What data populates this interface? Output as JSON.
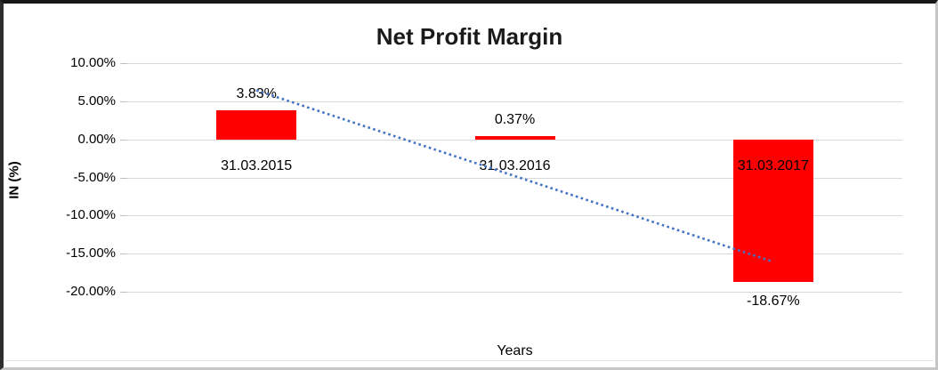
{
  "chart_data": {
    "type": "bar",
    "title": "Net Profit Margin",
    "xlabel": "Years",
    "ylabel": "IN (%)",
    "categories": [
      "31.03.2015",
      "31.03.2016",
      "31.03.2017"
    ],
    "values": [
      3.83,
      0.37,
      -18.67
    ],
    "data_labels": [
      "3.83%",
      "0.37%",
      "-18.67%"
    ],
    "ylim": [
      -20,
      10
    ],
    "ytick_values": [
      10,
      5,
      0,
      -5,
      -10,
      -15,
      -20
    ],
    "ytick_labels": [
      "10.00%",
      "5.00%",
      "0.00%",
      "-5.00%",
      "-10.00%",
      "-15.00%",
      "-20.00%"
    ],
    "grid": true,
    "legend": false,
    "bar_color": "#ff0000",
    "gridline_color": "#d9d9d9",
    "text_color": "#000000",
    "trendline": {
      "style": "dotted",
      "color": "#4472c4",
      "from_category_index": 0,
      "to_category_index": 2,
      "start_pct": 6.43,
      "end_pct": -16.07
    }
  }
}
